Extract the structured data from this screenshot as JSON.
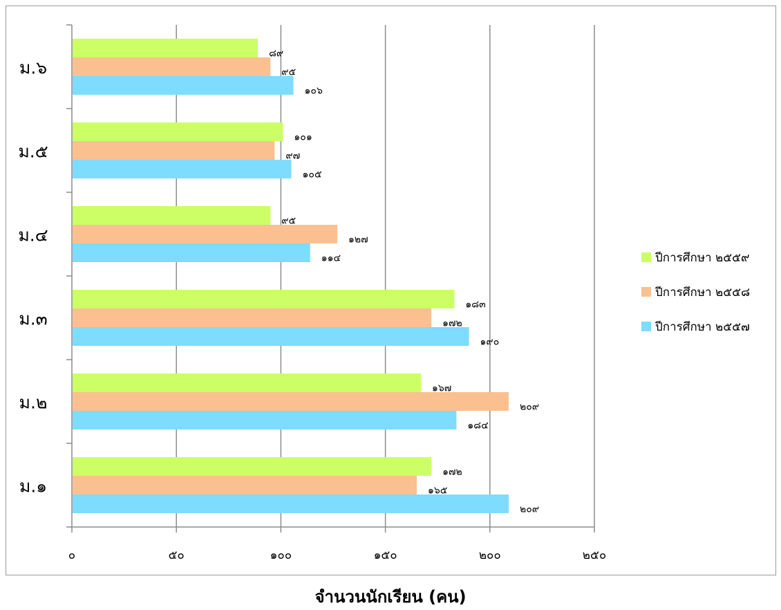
{
  "chart_data": {
    "type": "bar",
    "orientation": "horizontal",
    "categories": [
      "ม.๑",
      "ม.๒",
      "ม.๓",
      "ม.๔",
      "ม.๕",
      "ม.๖"
    ],
    "series": [
      {
        "name": "ปีการศึกษา ๒๕๕๗",
        "color": "#7ddcff",
        "values": [
          209,
          184,
          190,
          114,
          105,
          106
        ],
        "labels": [
          "๒๐๙",
          "๑๘๔",
          "๑๙๐",
          "๑๑๔",
          "๑๐๕",
          "๑๐๖"
        ]
      },
      {
        "name": "ปีการศึกษา ๒๕๕๘",
        "color": "#fac090",
        "values": [
          165,
          209,
          172,
          127,
          97,
          95
        ],
        "labels": [
          "๑๖๕",
          "๒๐๙",
          "๑๗๒",
          "๑๒๗",
          "๙๗",
          "๙๕"
        ]
      },
      {
        "name": "ปีการศึกษา ๒๕๕๙",
        "color": "#ccff66",
        "values": [
          172,
          167,
          183,
          95,
          101,
          89
        ],
        "labels": [
          "๑๗๒",
          "๑๖๗",
          "๑๘๓",
          "๙๕",
          "๑๐๑",
          "๘๙"
        ]
      }
    ],
    "x_ticks": [
      "๐",
      "๕๐",
      "๑๐๐",
      "๑๕๐",
      "๒๐๐",
      "๒๕๐"
    ],
    "xlim": [
      0,
      250
    ],
    "xlabel": "จำนวนนักเรียน (คน)",
    "ylabel": "",
    "title": "",
    "grid": true,
    "legend_position": "right"
  },
  "legend": {
    "items": [
      {
        "label": "ปีการศึกษา ๒๕๕๙",
        "color": "#ccff66"
      },
      {
        "label": "ปีการศึกษา ๒๕๕๘",
        "color": "#fac090"
      },
      {
        "label": "ปีการศึกษา ๒๕๕๗",
        "color": "#7ddcff"
      }
    ]
  }
}
